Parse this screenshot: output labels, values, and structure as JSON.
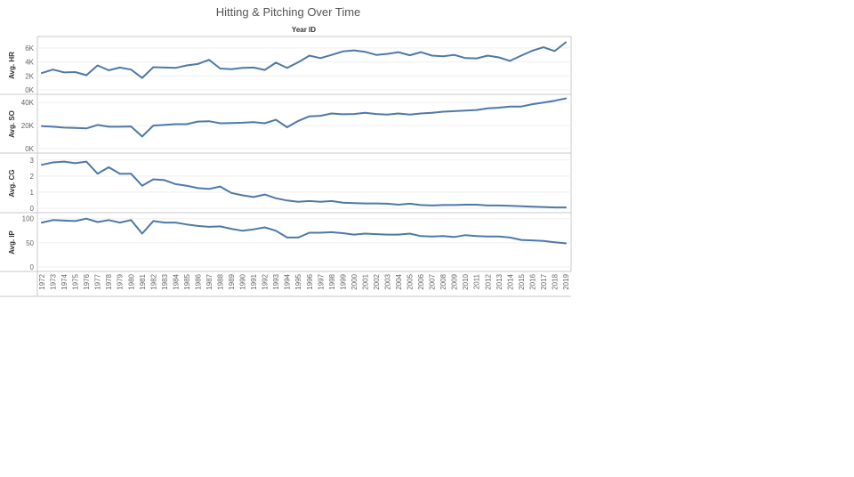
{
  "title": "Hitting & Pitching Over Time",
  "colors": {
    "line": "#4e79a7",
    "border": "#c8c8c8",
    "grid": "#efefef"
  },
  "chart_data": {
    "type": "line",
    "title": "Hitting & Pitching Over Time",
    "column_header": "Year ID",
    "x": [
      1972,
      1973,
      1974,
      1975,
      1976,
      1977,
      1978,
      1979,
      1980,
      1981,
      1982,
      1983,
      1984,
      1985,
      1986,
      1987,
      1988,
      1989,
      1990,
      1991,
      1992,
      1993,
      1994,
      1995,
      1996,
      1997,
      1998,
      1999,
      2000,
      2001,
      2002,
      2003,
      2004,
      2005,
      2006,
      2007,
      2008,
      2009,
      2010,
      2011,
      2012,
      2013,
      2014,
      2015,
      2016,
      2017,
      2018,
      2019
    ],
    "grid": true,
    "panels": [
      {
        "ylabel": "Avg. HR",
        "ylim": [
          0,
          7000
        ],
        "ticks": [
          {
            "v": 0,
            "label": "0K"
          },
          {
            "v": 2000,
            "label": "2K"
          },
          {
            "v": 4000,
            "label": "4K"
          },
          {
            "v": 6000,
            "label": "6K"
          }
        ],
        "values": [
          2400,
          2900,
          2500,
          2550,
          2100,
          3500,
          2800,
          3200,
          2900,
          1700,
          3250,
          3200,
          3150,
          3500,
          3700,
          4300,
          3050,
          2950,
          3150,
          3200,
          2850,
          3900,
          3150,
          3950,
          4900,
          4550,
          5000,
          5500,
          5650,
          5450,
          5000,
          5150,
          5400,
          4950,
          5400,
          4900,
          4800,
          5000,
          4550,
          4500,
          4900,
          4650,
          4150,
          4900,
          5600,
          6100,
          5550,
          6800
        ]
      },
      {
        "ylabel": "Avg. SO",
        "ylim": [
          0,
          44000
        ],
        "ticks": [
          {
            "v": 0,
            "label": "0K"
          },
          {
            "v": 20000,
            "label": "20K"
          },
          {
            "v": 40000,
            "label": "40K"
          }
        ],
        "values": [
          19500,
          19000,
          18200,
          18000,
          17500,
          20500,
          19000,
          19000,
          19200,
          10500,
          20000,
          20500,
          21200,
          21200,
          23500,
          23800,
          22000,
          22200,
          22500,
          23000,
          22000,
          25000,
          18500,
          24000,
          28000,
          28500,
          30500,
          29800,
          30000,
          31000,
          30000,
          29500,
          30500,
          29500,
          30500,
          31000,
          32000,
          32500,
          33000,
          33500,
          35000,
          35500,
          36500,
          36500,
          38500,
          40000,
          41500,
          43500
        ]
      },
      {
        "ylabel": "Avg. CG",
        "ylim": [
          0,
          3.1
        ],
        "ticks": [
          {
            "v": 0,
            "label": "0"
          },
          {
            "v": 1,
            "label": "1"
          },
          {
            "v": 2,
            "label": "2"
          },
          {
            "v": 3,
            "label": "3"
          }
        ],
        "values": [
          2.7,
          2.85,
          2.9,
          2.8,
          2.9,
          2.15,
          2.55,
          2.15,
          2.15,
          1.4,
          1.8,
          1.75,
          1.5,
          1.4,
          1.25,
          1.2,
          1.35,
          0.95,
          0.8,
          0.7,
          0.85,
          0.62,
          0.48,
          0.4,
          0.45,
          0.4,
          0.45,
          0.35,
          0.32,
          0.3,
          0.3,
          0.28,
          0.22,
          0.28,
          0.2,
          0.17,
          0.2,
          0.2,
          0.22,
          0.22,
          0.17,
          0.17,
          0.15,
          0.12,
          0.1,
          0.08,
          0.05,
          0.05
        ]
      },
      {
        "ylabel": "Avg. IP",
        "ylim": [
          0,
          105
        ],
        "ticks": [
          {
            "v": 0,
            "label": "0"
          },
          {
            "v": 50,
            "label": "50"
          },
          {
            "v": 100,
            "label": "100"
          }
        ],
        "values": [
          92,
          97,
          96,
          95,
          100,
          93,
          97,
          92,
          97,
          69,
          95,
          92,
          92,
          88,
          85,
          83,
          84,
          79,
          75,
          78,
          82,
          75,
          61,
          61,
          71,
          71,
          72,
          70,
          67,
          69,
          68,
          67,
          67,
          69,
          64,
          63,
          64,
          62,
          66,
          64,
          63,
          63,
          61,
          56,
          55,
          54,
          51,
          49
        ]
      }
    ]
  }
}
